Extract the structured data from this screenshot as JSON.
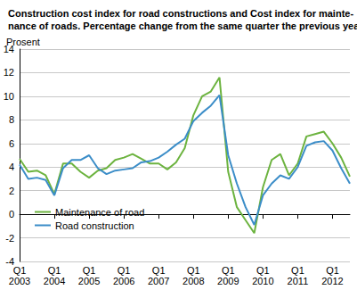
{
  "chart_data": {
    "type": "line",
    "title": "Construction cost index for road constructions and Cost index for mainte-\nnance of roads. Percentage change from the same quarter the previous year",
    "y_label": "Prosent",
    "categories": [
      "Q1\n2003",
      null,
      null,
      null,
      "Q1\n2004",
      null,
      null,
      null,
      "Q1\n2005",
      null,
      null,
      null,
      "Q1\n2006",
      null,
      null,
      null,
      "Q1\n2007",
      null,
      null,
      null,
      "Q1\n2008",
      null,
      null,
      null,
      "Q1\n2009",
      null,
      null,
      null,
      "Q1\n2010",
      null,
      null,
      null,
      "Q1\n2011",
      null,
      null,
      null,
      "Q1\n2012",
      null,
      null
    ],
    "series": [
      {
        "name": "Maintenance of road",
        "color": "#6cb33f",
        "values": [
          4.7,
          3.6,
          3.7,
          3.3,
          1.7,
          4.3,
          4.3,
          3.6,
          3.1,
          3.7,
          3.9,
          4.6,
          4.8,
          5.1,
          4.7,
          4.3,
          4.3,
          3.8,
          4.4,
          5.6,
          8.4,
          10.0,
          10.4,
          11.6,
          3.6,
          0.6,
          -0.5,
          -1.6,
          2.3,
          4.6,
          5.1,
          3.3,
          4.3,
          6.6,
          6.8,
          7.0,
          6.0,
          4.8,
          3.2
        ]
      },
      {
        "name": "Road construction",
        "color": "#3b8dc8",
        "values": [
          4.2,
          3.0,
          3.1,
          2.9,
          1.6,
          3.9,
          4.6,
          4.6,
          5.0,
          3.9,
          3.4,
          3.7,
          3.8,
          3.9,
          4.4,
          4.5,
          4.8,
          5.3,
          5.9,
          6.4,
          7.9,
          8.6,
          9.2,
          10.1,
          5.0,
          2.6,
          0.6,
          -0.9,
          1.6,
          2.6,
          3.3,
          3.0,
          4.0,
          5.8,
          6.1,
          6.2,
          5.4,
          3.9,
          2.6
        ]
      }
    ],
    "ylim": [
      -4,
      14
    ],
    "yticks": [
      -4,
      -2,
      0,
      2,
      4,
      6,
      8,
      10,
      12,
      14
    ],
    "grid": true,
    "legend": "lower left"
  }
}
